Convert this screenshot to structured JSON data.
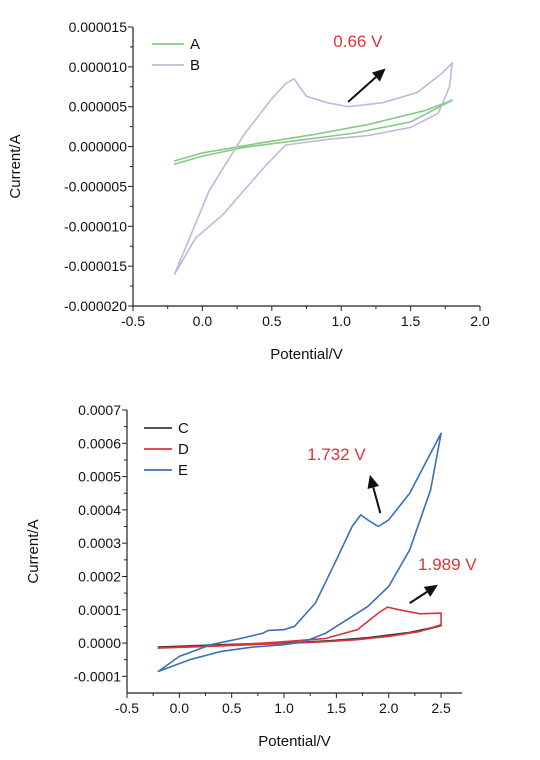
{
  "chart_data": [
    {
      "type": "line",
      "title": "",
      "xlabel": "Potential/V",
      "ylabel": "Current/A",
      "xlim": [
        -0.5,
        2.0
      ],
      "ylim": [
        -2e-05,
        1.5e-05
      ],
      "xticks": [
        -0.5,
        0.0,
        0.5,
        1.0,
        1.5,
        2.0
      ],
      "xtick_labels": [
        "-0.5",
        "0.0",
        "0.5",
        "1.0",
        "1.5",
        "2.0"
      ],
      "yticks": [
        1.5e-05,
        1e-05,
        5e-06,
        0.0,
        -5e-06,
        -1e-05,
        -1.5e-05,
        -2e-05
      ],
      "ytick_labels": [
        "0.000015",
        "0.000010",
        "0.000005",
        "0.000000",
        "-0.000005",
        "-0.000010",
        "-0.000015",
        "-0.000020"
      ],
      "grid": false,
      "legend_position": "top-left",
      "series": [
        {
          "name": "A",
          "color": "#86c98a",
          "x": [
            -0.2,
            0.0,
            0.3,
            0.7,
            1.1,
            1.5,
            1.8,
            1.6,
            1.2,
            0.8,
            0.4,
            0.0,
            -0.2
          ],
          "y": [
            -2.2e-06,
            -1.2e-06,
            -1e-07,
            8e-07,
            1.7e-06,
            3.1e-06,
            5.8e-06,
            4.5e-06,
            2.8e-06,
            1.5e-06,
            4e-07,
            -8e-07,
            -1.8e-06
          ]
        },
        {
          "name": "B",
          "color": "#c8b4dc",
          "x": [
            -0.2,
            0.05,
            0.3,
            0.5,
            0.6,
            0.66,
            0.75,
            0.9,
            1.05,
            1.3,
            1.55,
            1.72,
            1.8,
            1.78,
            1.7,
            1.5,
            1.2,
            0.9,
            0.6,
            0.45,
            0.3,
            0.15,
            -0.05,
            -0.2
          ],
          "y": [
            -1.6e-05,
            -5.5e-06,
            1.5e-06,
            6e-06,
            7.9e-06,
            8.5e-06,
            6.3e-06,
            5.5e-06,
            5e-06,
            5.5e-06,
            6.8e-06,
            9.1e-06,
            1.05e-05,
            7.5e-06,
            4.2e-06,
            2.4e-06,
            1.4e-06,
            9e-07,
            2e-07,
            -2.5e-06,
            -5.5e-06,
            -8.5e-06,
            -1.15e-05,
            -1.6e-05
          ]
        }
      ],
      "annotations": [
        {
          "text": "0.66 V",
          "color": "#d9353a",
          "x": 1.12,
          "y": 1.25e-05
        }
      ],
      "arrows": [
        {
          "x1": 1.05,
          "y1": 5.6e-06,
          "x2": 1.32,
          "y2": 9.8e-06
        }
      ]
    },
    {
      "type": "line",
      "title": "",
      "xlabel": "Potential/V",
      "ylabel": "Current/A",
      "xlim": [
        -0.5,
        2.7
      ],
      "ylim": [
        -0.00015,
        0.0007
      ],
      "xticks": [
        -0.5,
        0.0,
        0.5,
        1.0,
        1.5,
        2.0,
        2.5
      ],
      "xtick_labels": [
        "-0.5",
        "0.0",
        "0.5",
        "1.0",
        "1.5",
        "2.0",
        "2.5"
      ],
      "yticks": [
        0.0007,
        0.0006,
        0.0005,
        0.0004,
        0.0003,
        0.0002,
        0.0001,
        0.0,
        -0.0001
      ],
      "ytick_labels": [
        "0.0007",
        "0.0006",
        "0.0005",
        "0.0004",
        "0.0003",
        "0.0002",
        "0.0001",
        "0.0000",
        "-0.0001"
      ],
      "grid": false,
      "legend_position": "top-left",
      "series": [
        {
          "name": "C",
          "color": "#3a3a3a",
          "x": [
            -0.2,
            0.2,
            0.6,
            1.0,
            1.4,
            1.8,
            2.2,
            2.5,
            2.3,
            1.9,
            1.5,
            1.1,
            0.7,
            0.3,
            -0.2
          ],
          "y": [
            -1.2e-05,
            -8e-06,
            -4e-06,
            0.0,
            6e-06,
            1.6e-05,
            3.2e-05,
            5.2e-05,
            3.6e-05,
            1.8e-05,
            8e-06,
            2e-06,
            -2e-06,
            -6e-06,
            -1.2e-05
          ]
        },
        {
          "name": "D",
          "color": "#d9353a",
          "x": [
            -0.2,
            0.2,
            0.6,
            1.0,
            1.4,
            1.7,
            1.9,
            1.989,
            2.1,
            2.3,
            2.5,
            2.5,
            2.3,
            2.0,
            1.7,
            1.4,
            1.0,
            0.6,
            0.2,
            -0.2
          ],
          "y": [
            -1.5e-05,
            -1e-05,
            -4e-06,
            4e-06,
            1.4e-05,
            4e-05,
            9e-05,
            0.000108,
            0.0001,
            8.8e-05,
            9e-05,
            5.5e-05,
            3.5e-05,
            2e-05,
            1e-05,
            4e-06,
            -1e-06,
            -6e-06,
            -1.1e-05,
            -1.5e-05
          ]
        },
        {
          "name": "E",
          "color": "#3b6fb6",
          "x": [
            -0.2,
            0.0,
            0.3,
            0.6,
            0.8,
            0.85,
            1.0,
            1.1,
            1.3,
            1.5,
            1.65,
            1.732,
            1.8,
            1.9,
            2.0,
            2.2,
            2.4,
            2.5,
            2.4,
            2.2,
            2.0,
            1.8,
            1.6,
            1.4,
            1.2,
            1.0,
            0.7,
            0.4,
            0.1,
            -0.2
          ],
          "y": [
            -8.5e-05,
            -4e-05,
            -5e-06,
            1.5e-05,
            3e-05,
            3.8e-05,
            4e-05,
            5e-05,
            0.00012,
            0.00025,
            0.00035,
            0.000385,
            0.00037,
            0.00035,
            0.00037,
            0.00045,
            0.00057,
            0.00063,
            0.00046,
            0.00028,
            0.00017,
            0.00011,
            7e-05,
            3e-05,
            5e-06,
            -5e-06,
            -1.2e-05,
            -2.5e-05,
            -5e-05,
            -8.5e-05
          ]
        }
      ],
      "annotations": [
        {
          "text": "1.732 V",
          "color": "#d9353a",
          "x": 1.5,
          "y": 0.00055
        },
        {
          "text": "1.989 V",
          "color": "#d9353a",
          "x": 2.56,
          "y": 0.00022
        }
      ],
      "arrows": [
        {
          "x1": 1.92,
          "y1": 0.00039,
          "x2": 1.82,
          "y2": 0.000505
        },
        {
          "x1": 2.2,
          "y1": 0.00012,
          "x2": 2.47,
          "y2": 0.000175
        }
      ]
    }
  ]
}
